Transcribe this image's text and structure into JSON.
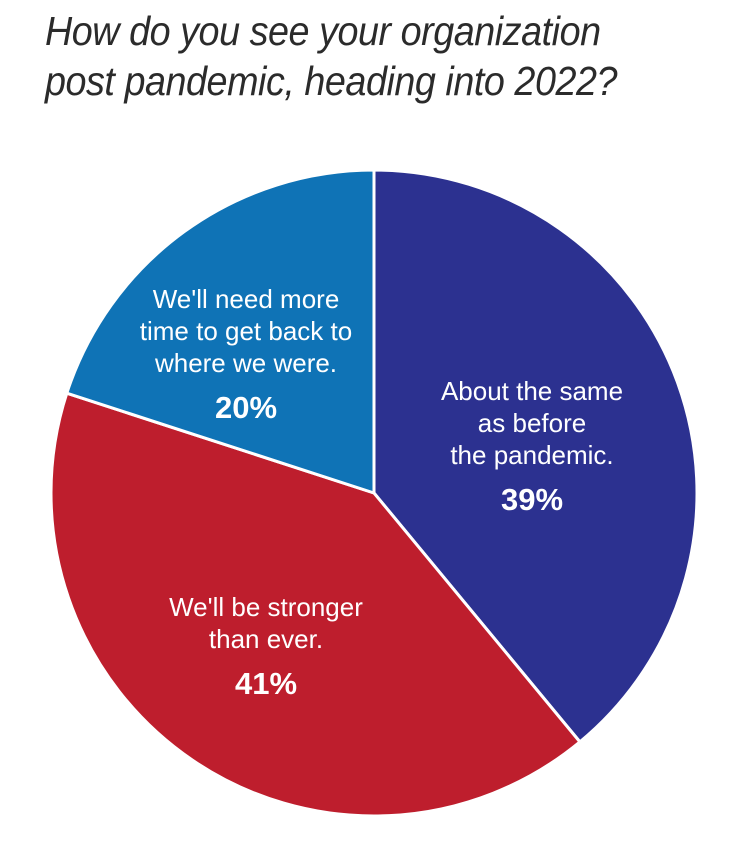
{
  "title_lines": [
    "How do you see your organization",
    "post pandemic, heading into 2022?"
  ],
  "chart_data": {
    "type": "pie",
    "title": "How do you see your organization post pandemic, heading into 2022?",
    "start_angle_deg": 0,
    "direction": "clockwise",
    "slices": [
      {
        "name": "About the same as before the pandemic.",
        "label_lines": [
          "About the same",
          "as before",
          "the pandemic."
        ],
        "value": 39,
        "value_label": "39%",
        "color": "#2c3190"
      },
      {
        "name": "We'll be stronger than ever.",
        "label_lines": [
          "We'll be stronger",
          "than ever."
        ],
        "value": 41,
        "value_label": "41%",
        "color": "#be1e2d"
      },
      {
        "name": "We'll need more time to get back to where we were.",
        "label_lines": [
          "We'll need more",
          "time to get back to",
          "where we were."
        ],
        "value": 20,
        "value_label": "20%",
        "color": "#0f73b6"
      }
    ]
  }
}
